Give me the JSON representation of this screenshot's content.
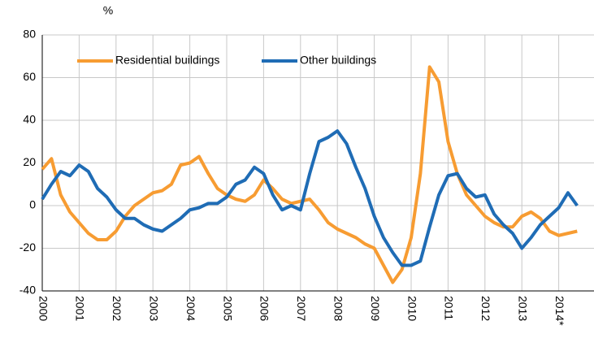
{
  "chart_data": {
    "type": "line",
    "y_label": "%",
    "x": [
      2000,
      2000.25,
      2000.5,
      2000.75,
      2001,
      2001.25,
      2001.5,
      2001.75,
      2002,
      2002.25,
      2002.5,
      2002.75,
      2003,
      2003.25,
      2003.5,
      2003.75,
      2004,
      2004.25,
      2004.5,
      2004.75,
      2005,
      2005.25,
      2005.5,
      2005.75,
      2006,
      2006.25,
      2006.5,
      2006.75,
      2007,
      2007.25,
      2007.5,
      2007.75,
      2008,
      2008.25,
      2008.5,
      2008.75,
      2009,
      2009.25,
      2009.5,
      2009.75,
      2010,
      2010.25,
      2010.5,
      2010.75,
      2011,
      2011.25,
      2011.5,
      2011.75,
      2012,
      2012.25,
      2012.5,
      2012.75,
      2013,
      2013.25,
      2013.5,
      2013.75,
      2014,
      2014.25,
      2014.5
    ],
    "series": [
      {
        "name": "Residential buildings",
        "color": "#f79c32",
        "values": [
          17,
          22,
          5,
          -3,
          -8,
          -13,
          -16,
          -16,
          -12,
          -5,
          0,
          3,
          6,
          7,
          10,
          19,
          20,
          23,
          15,
          8,
          5,
          3,
          2,
          5,
          12,
          8,
          3,
          1,
          2,
          3,
          -2,
          -8,
          -11,
          -13,
          -15,
          -18,
          -20,
          -28,
          -36,
          -30,
          -15,
          15,
          65,
          58,
          30,
          15,
          5,
          0,
          -5,
          -8,
          -10,
          -10,
          -5,
          -3,
          -6,
          -12,
          -14,
          -13,
          -12
        ]
      },
      {
        "name": "Other buildings",
        "color": "#1f6cb5",
        "values": [
          3,
          10,
          16,
          14,
          19,
          16,
          8,
          4,
          -2,
          -6,
          -6,
          -9,
          -11,
          -12,
          -9,
          -6,
          -2,
          -1,
          1,
          1,
          4,
          10,
          12,
          18,
          15,
          5,
          -2,
          0,
          -2,
          15,
          30,
          32,
          35,
          29,
          18,
          8,
          -5,
          -15,
          -22,
          -28,
          -28,
          -26,
          -10,
          5,
          14,
          15,
          8,
          4,
          5,
          -4,
          -9,
          -13,
          -20,
          -15,
          -9,
          -5,
          -1,
          6,
          0
        ]
      }
    ],
    "xlim": [
      2000,
      2015
    ],
    "xticks": [
      2000,
      2001,
      2002,
      2003,
      2004,
      2005,
      2006,
      2007,
      2008,
      2009,
      2010,
      2011,
      2012,
      2013,
      {
        "value": 2014,
        "label": "2014*"
      }
    ],
    "ylim": [
      -40,
      80
    ],
    "yticks": [
      -40,
      -20,
      0,
      20,
      40,
      60,
      80
    ],
    "grid": true,
    "legend": "top"
  }
}
